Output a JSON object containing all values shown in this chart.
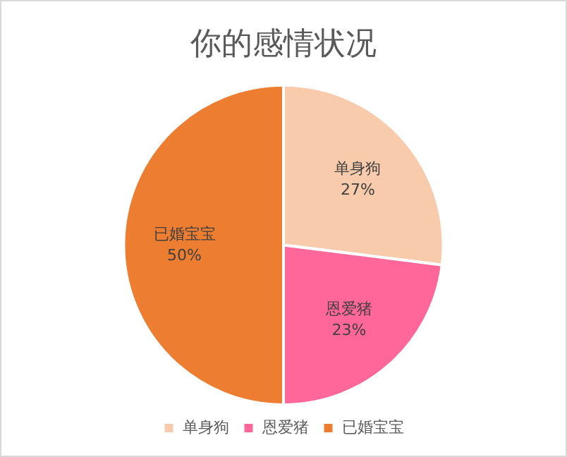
{
  "chart_data": {
    "type": "pie",
    "title": "你的感情状况",
    "categories": [
      "单身狗",
      "恩爱猪",
      "已婚宝宝"
    ],
    "values": [
      27,
      23,
      50
    ],
    "value_labels": [
      "27%",
      "23%",
      "50%"
    ],
    "colors": [
      "#f8cbad",
      "#ff6699",
      "#ed7d31"
    ],
    "legend": "bottom"
  }
}
